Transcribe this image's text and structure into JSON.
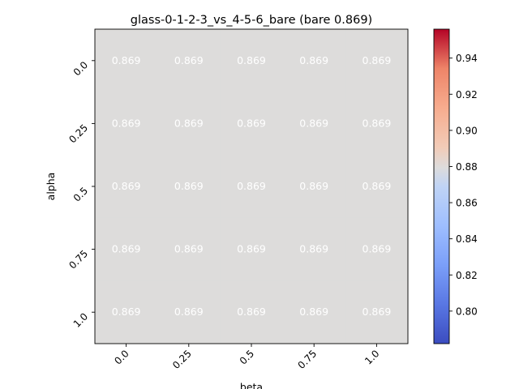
{
  "chart_data": {
    "type": "heatmap",
    "title": "glass-0-1-2-3_vs_4-5-6_bare (bare 0.869)",
    "xlabel": "beta",
    "ylabel": "alpha",
    "x_categories": [
      "0.0",
      "0.25",
      "0.5",
      "0.75",
      "1.0"
    ],
    "y_categories": [
      "0.0",
      "0.25",
      "0.5",
      "0.75",
      "1.0"
    ],
    "values": [
      [
        0.869,
        0.869,
        0.869,
        0.869,
        0.869
      ],
      [
        0.869,
        0.869,
        0.869,
        0.869,
        0.869
      ],
      [
        0.869,
        0.869,
        0.869,
        0.869,
        0.869
      ],
      [
        0.869,
        0.869,
        0.869,
        0.869,
        0.869
      ],
      [
        0.869,
        0.869,
        0.869,
        0.869,
        0.869
      ]
    ],
    "cell_labels": [
      [
        "0.869",
        "0.869",
        "0.869",
        "0.869",
        "0.869"
      ],
      [
        "0.869",
        "0.869",
        "0.869",
        "0.869",
        "0.869"
      ],
      [
        "0.869",
        "0.869",
        "0.869",
        "0.869",
        "0.869"
      ],
      [
        "0.869",
        "0.869",
        "0.869",
        "0.869",
        "0.869"
      ],
      [
        "0.869",
        "0.869",
        "0.869",
        "0.869",
        "0.869"
      ]
    ],
    "colormap": "coolwarm",
    "colorbar": {
      "range": [
        0.782,
        0.956
      ],
      "ticks": [
        0.8,
        0.82,
        0.84,
        0.86,
        0.88,
        0.9,
        0.92,
        0.94
      ],
      "tick_labels": [
        "0.80",
        "0.82",
        "0.84",
        "0.86",
        "0.88",
        "0.90",
        "0.92",
        "0.94"
      ]
    },
    "cell_color": "#dddcdb",
    "cell_text_color": "#ffffff",
    "grid": false
  }
}
